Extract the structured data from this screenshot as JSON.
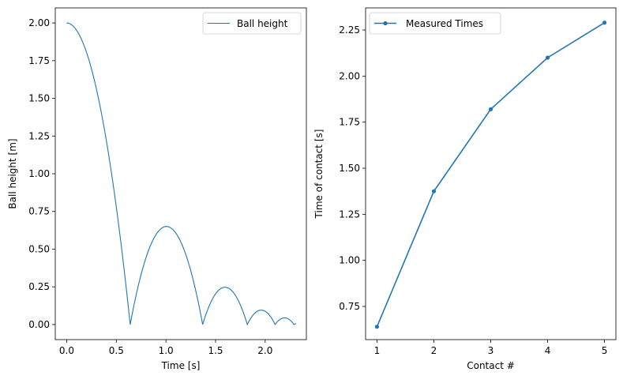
{
  "chart_data": [
    {
      "type": "line",
      "xlabel": "Time [s]",
      "ylabel": "Ball height [m]",
      "xlim": [
        -0.115,
        2.415
      ],
      "ylim": [
        -0.1,
        2.1
      ],
      "xticks": [
        0.0,
        0.5,
        1.0,
        1.5,
        2.0
      ],
      "xtick_labels": [
        "0.0",
        "0.5",
        "1.0",
        "1.5",
        "2.0"
      ],
      "yticks": [
        0.0,
        0.25,
        0.5,
        0.75,
        1.0,
        1.25,
        1.5,
        1.75,
        2.0
      ],
      "ytick_labels": [
        "0.00",
        "0.25",
        "0.50",
        "0.75",
        "1.00",
        "1.25",
        "1.50",
        "1.75",
        "2.00"
      ],
      "legend_position": "top-right",
      "series": [
        {
          "name": "Ball height",
          "color": "#1f77b4",
          "description": "Bouncing ball: drop from 2.0 m, contacts at 0.64, 1.37, 1.82, 2.10, 2.29 s; peaks of 0.66, 0.24, 0.10, 0.04 m"
        }
      ],
      "drop": {
        "height": 2.0,
        "start": 0.0
      },
      "contacts": [
        0.64,
        1.37,
        1.82,
        2.1,
        2.29
      ],
      "end_time": 2.31
    },
    {
      "type": "line",
      "xlabel": "Contact #",
      "ylabel": "Time of contact [s]",
      "xlim": [
        0.8,
        5.2
      ],
      "ylim": [
        0.57,
        2.37
      ],
      "xticks": [
        1,
        2,
        3,
        4,
        5
      ],
      "xtick_labels": [
        "1",
        "2",
        "3",
        "4",
        "5"
      ],
      "yticks": [
        0.75,
        1.0,
        1.25,
        1.5,
        1.75,
        2.0,
        2.25
      ],
      "ytick_labels": [
        "0.75",
        "1.00",
        "1.25",
        "1.50",
        "1.75",
        "2.00",
        "2.25"
      ],
      "legend_position": "top-left",
      "series": [
        {
          "name": "Measured Times",
          "color": "#1f77b4",
          "marker": "circle",
          "x": [
            1,
            2,
            3,
            4,
            5
          ],
          "y": [
            0.64,
            1.375,
            1.82,
            2.1,
            2.29
          ]
        }
      ]
    }
  ]
}
